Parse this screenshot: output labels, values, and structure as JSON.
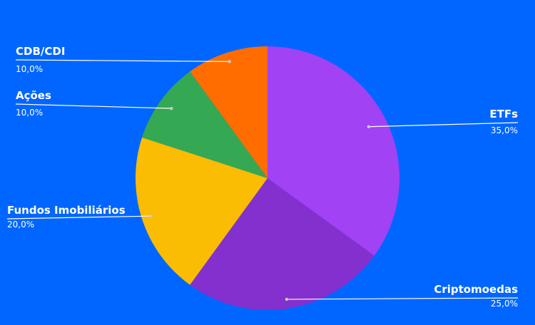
{
  "chart_data": {
    "type": "pie",
    "title": "",
    "start_angle_deg": 0,
    "direction": "clockwise",
    "legend": "none",
    "slices": [
      {
        "label": "ETFs",
        "value": 35.0,
        "value_text": "35,0%",
        "color": "#a142f4"
      },
      {
        "label": "Criptomoedas",
        "value": 25.0,
        "value_text": "25,0%",
        "color": "#8430ce"
      },
      {
        "label": "Fundos Imobiliários",
        "value": 20.0,
        "value_text": "20,0%",
        "color": "#fbbc04"
      },
      {
        "label": "Ações",
        "value": 10.0,
        "value_text": "10,0%",
        "color": "#34a853"
      },
      {
        "label": "CDB/CDI",
        "value": 10.0,
        "value_text": "10,0%",
        "color": "#ff6d01"
      }
    ]
  },
  "colors": {
    "background": "#0066ff"
  }
}
